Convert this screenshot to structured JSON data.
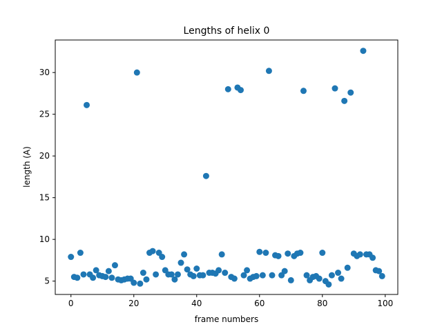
{
  "chart_data": {
    "type": "scatter",
    "title": "Lengths of helix 0",
    "xlabel": "frame numbers",
    "ylabel": "length (A)",
    "xlim": [
      -5,
      104
    ],
    "ylim": [
      3.4,
      33.9
    ],
    "xticks": [
      0,
      20,
      40,
      60,
      80,
      100
    ],
    "yticks": [
      5,
      10,
      15,
      20,
      25,
      30
    ],
    "grid": false,
    "marker_color": "#1f77b4",
    "series": [
      {
        "x": [
          0,
          1,
          2,
          3,
          4,
          5,
          6,
          7,
          8,
          9,
          10,
          11,
          12,
          13,
          14,
          15,
          16,
          17,
          18,
          19,
          20,
          21,
          22,
          23,
          24,
          25,
          26,
          27,
          28,
          29,
          30,
          31,
          32,
          33,
          34,
          35,
          36,
          37,
          38,
          39,
          40,
          41,
          42,
          43,
          44,
          45,
          46,
          47,
          48,
          49,
          50,
          51,
          52,
          53,
          54,
          55,
          56,
          57,
          58,
          59,
          60,
          61,
          62,
          63,
          64,
          65,
          66,
          67,
          68,
          69,
          70,
          71,
          72,
          73,
          74,
          75,
          76,
          77,
          78,
          79,
          80,
          81,
          82,
          83,
          84,
          85,
          86,
          87,
          88,
          89,
          90,
          91,
          92,
          93,
          94,
          95,
          96,
          97,
          98,
          99
        ],
        "y": [
          7.9,
          5.5,
          5.4,
          8.4,
          5.8,
          26.1,
          5.8,
          5.4,
          6.3,
          5.7,
          5.6,
          5.5,
          6.2,
          5.4,
          6.9,
          5.2,
          5.1,
          5.2,
          5.3,
          5.3,
          4.8,
          30.0,
          4.7,
          6.0,
          5.2,
          8.4,
          8.6,
          5.8,
          8.4,
          7.9,
          6.3,
          5.8,
          5.8,
          5.2,
          5.8,
          7.2,
          8.2,
          6.4,
          5.8,
          5.6,
          6.5,
          5.7,
          5.7,
          17.6,
          6.0,
          6.0,
          5.9,
          6.3,
          8.2,
          6.0,
          28.0,
          5.5,
          5.3,
          28.2,
          27.9,
          5.7,
          6.3,
          5.3,
          5.5,
          5.6,
          8.5,
          5.7,
          8.4,
          30.2,
          5.7,
          8.1,
          8.0,
          5.7,
          6.2,
          8.3,
          5.1,
          8.0,
          8.3,
          8.4,
          27.8,
          5.7,
          5.1,
          5.5,
          5.6,
          5.3,
          8.4,
          5.0,
          4.6,
          5.7,
          28.1,
          6.0,
          5.3,
          26.6,
          6.6,
          27.6,
          8.3,
          8.0,
          8.2,
          32.6,
          8.2,
          8.2,
          7.8,
          6.3,
          6.2,
          5.6
        ]
      }
    ]
  }
}
